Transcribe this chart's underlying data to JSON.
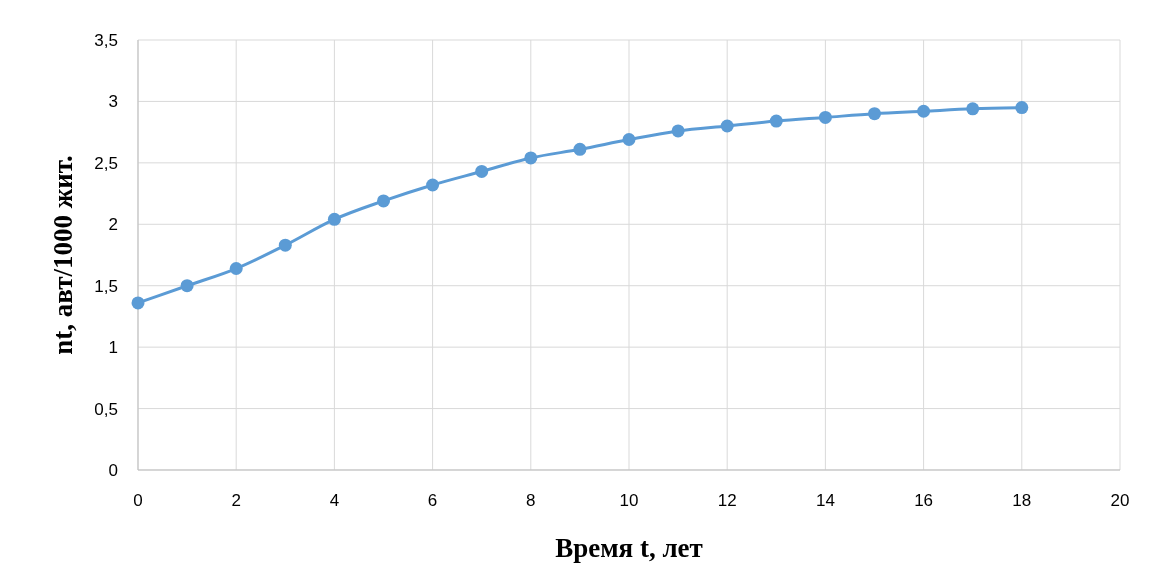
{
  "chart_data": {
    "type": "line",
    "xlabel": "Время t, лет",
    "ylabel": "nt, авт/1000 жит.",
    "x": [
      0,
      1,
      2,
      3,
      4,
      5,
      6,
      7,
      8,
      9,
      10,
      11,
      12,
      13,
      14,
      15,
      16,
      17,
      18
    ],
    "series": [
      {
        "color": "#5b9bd5",
        "values": [
          1.36,
          1.5,
          1.64,
          1.83,
          2.04,
          2.19,
          2.32,
          2.43,
          2.54,
          2.61,
          2.69,
          2.76,
          2.8,
          2.84,
          2.87,
          2.9,
          2.92,
          2.94,
          2.95
        ]
      }
    ],
    "xlim": [
      0,
      20
    ],
    "xticks": [
      0,
      2,
      4,
      6,
      8,
      10,
      12,
      14,
      16,
      18,
      20
    ],
    "ylim": [
      0,
      3.5
    ],
    "yticks": [
      0,
      {
        "value": 0.5,
        "label": "0,5"
      },
      1,
      {
        "value": 1.5,
        "label": "1,5"
      },
      2,
      {
        "value": 2.5,
        "label": "2,5"
      },
      3,
      {
        "value": 3.5,
        "label": "3,5"
      }
    ],
    "grid": true,
    "marker": "circle"
  }
}
